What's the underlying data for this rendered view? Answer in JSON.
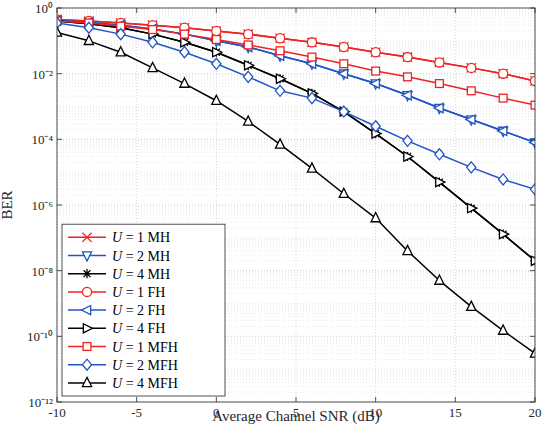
{
  "chart_data": {
    "type": "line",
    "x_label": "Average Channel SNR (dB)",
    "y_label": "BER",
    "log": "y",
    "grid": true,
    "legend": "lower left",
    "xlim": [
      -10,
      20
    ],
    "xticks": [
      -10,
      -5,
      0,
      5,
      10,
      15,
      20
    ],
    "ylim": [
      1e-12,
      1
    ],
    "yticks": [
      {
        "value": 1e-12,
        "label": "10⁻¹²"
      },
      {
        "value": 1e-10,
        "label": "10⁻¹⁰"
      },
      {
        "value": 1e-08,
        "label": "10⁻⁸"
      },
      {
        "value": 1e-06,
        "label": "10⁻⁶"
      },
      {
        "value": 0.0001,
        "label": "10⁻⁴"
      },
      {
        "value": 0.01,
        "label": "10⁻²"
      },
      {
        "value": 1,
        "label": "10⁰"
      }
    ],
    "x": [
      -10,
      -8,
      -6,
      -4,
      -2,
      0,
      2,
      4,
      6,
      8,
      10,
      12,
      14,
      16,
      18,
      20
    ],
    "series": [
      {
        "name": "U = 1 MH",
        "color": "#ee2222",
        "marker": "x",
        "line_style": "solid",
        "values": [
          0.45,
          0.4,
          0.35,
          0.3,
          0.25,
          0.2,
          0.16,
          0.12,
          0.09,
          0.065,
          0.045,
          0.032,
          0.022,
          0.015,
          0.01,
          0.006
        ]
      },
      {
        "name": "U = 2 MH",
        "color": "#2255c4",
        "marker": "triangle-down",
        "line_style": "solid",
        "values": [
          0.42,
          0.37,
          0.3,
          0.23,
          0.16,
          0.1,
          0.065,
          0.035,
          0.02,
          0.01,
          0.005,
          0.0022,
          0.0009,
          0.0004,
          0.00018,
          8e-05
        ]
      },
      {
        "name": "U = 4 MH",
        "color": "#000000",
        "marker": "asterisk",
        "line_style": "solid",
        "values": [
          0.4,
          0.33,
          0.25,
          0.16,
          0.09,
          0.045,
          0.018,
          0.007,
          0.0025,
          0.0007,
          0.00015,
          3e-05,
          5e-06,
          8e-07,
          1.3e-07,
          2e-08
        ]
      },
      {
        "name": "U = 1 FH",
        "color": "#ee2222",
        "marker": "circle",
        "line_style": "solid",
        "values": [
          0.45,
          0.4,
          0.35,
          0.3,
          0.25,
          0.2,
          0.16,
          0.12,
          0.09,
          0.065,
          0.045,
          0.032,
          0.022,
          0.015,
          0.01,
          0.006
        ]
      },
      {
        "name": "U = 2 FH",
        "color": "#2255c4",
        "marker": "triangle-left",
        "line_style": "solid",
        "values": [
          0.42,
          0.37,
          0.3,
          0.23,
          0.16,
          0.1,
          0.065,
          0.035,
          0.02,
          0.01,
          0.005,
          0.0022,
          0.0009,
          0.0004,
          0.00018,
          8e-05
        ]
      },
      {
        "name": "U = 4 FH",
        "color": "#000000",
        "marker": "triangle-right",
        "line_style": "solid",
        "values": [
          0.4,
          0.33,
          0.25,
          0.16,
          0.09,
          0.045,
          0.018,
          0.007,
          0.0025,
          0.0007,
          0.00015,
          3e-05,
          5e-06,
          8e-07,
          1.3e-07,
          2e-08
        ]
      },
      {
        "name": "U = 1 MFH",
        "color": "#ee2222",
        "marker": "square",
        "line_style": "solid",
        "values": [
          0.4,
          0.35,
          0.28,
          0.22,
          0.16,
          0.11,
          0.075,
          0.05,
          0.032,
          0.02,
          0.012,
          0.008,
          0.005,
          0.003,
          0.0018,
          0.0011
        ]
      },
      {
        "name": "U = 2 MFH",
        "color": "#2255c4",
        "marker": "diamond",
        "line_style": "solid",
        "values": [
          0.35,
          0.25,
          0.16,
          0.09,
          0.045,
          0.02,
          0.008,
          0.003,
          0.0018,
          0.0007,
          0.00025,
          9e-05,
          3.5e-05,
          1.4e-05,
          6e-06,
          3e-06
        ]
      },
      {
        "name": "U = 4 MFH",
        "color": "#000000",
        "marker": "triangle-up",
        "line_style": "solid",
        "values": [
          0.18,
          0.1,
          0.045,
          0.015,
          0.005,
          0.0015,
          0.00035,
          7e-05,
          1.3e-05,
          2.2e-06,
          4e-07,
          4e-08,
          5e-09,
          8e-10,
          1.5e-10,
          3e-11
        ]
      }
    ]
  }
}
